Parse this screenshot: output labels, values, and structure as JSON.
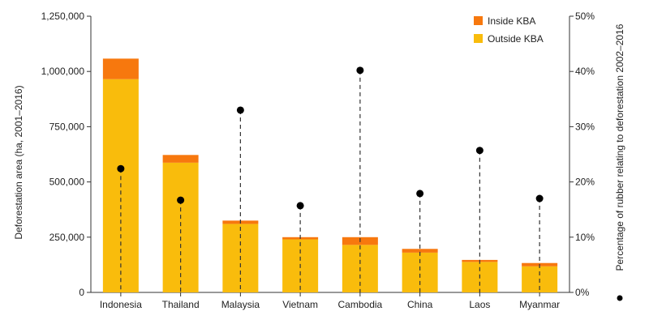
{
  "chart_data": {
    "type": "bar",
    "categories": [
      "Indonesia",
      "Thailand",
      "Malaysia",
      "Vietnam",
      "Cambodia",
      "China",
      "Laos",
      "Myanmar"
    ],
    "series": [
      {
        "name": "Outside KBA",
        "values": [
          965000,
          587000,
          310000,
          240000,
          215000,
          180000,
          138000,
          118000
        ],
        "color": "#F9BC0C"
      },
      {
        "name": "Inside KBA",
        "values": [
          93000,
          35000,
          15000,
          10000,
          35000,
          17000,
          9000,
          15000
        ],
        "color": "#F7780E"
      }
    ],
    "rubber_percentage": {
      "values": [
        22.4,
        16.7,
        33.0,
        15.7,
        40.2,
        17.9,
        25.7,
        17.0
      ],
      "color": "#000000"
    },
    "ylabel": "Deforestation area (ha, 2001–2016)",
    "y2label": "Percentage of rubber relating to deforestation 2002–2016",
    "ylim": [
      0,
      1250000
    ],
    "y2lim": [
      0,
      50
    ],
    "yticks": [
      "0",
      "250,000",
      "500,000",
      "750,000",
      "1,000,000",
      "1,250,000"
    ],
    "y2ticks": [
      "0%",
      "10%",
      "20%",
      "30%",
      "40%",
      "50%"
    ],
    "legend": [
      "Inside KBA",
      "Outside KBA"
    ],
    "legend_position": "top-right",
    "grid": false
  }
}
